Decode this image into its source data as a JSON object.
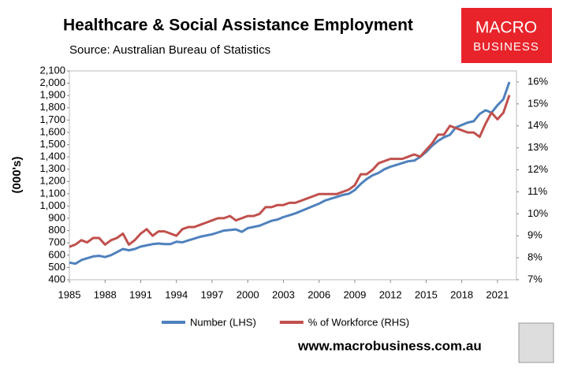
{
  "chart_data": {
    "type": "line",
    "title": "Healthcare & Social Assistance Employment",
    "subtitle": "Source: Australian Bureau of Statistics",
    "y_label": "(000's)",
    "logo_line1": "MACRO",
    "logo_line2": "BUSINESS",
    "website": "www.macrobusiness.com.au",
    "x": [
      1985,
      1985.5,
      1986,
      1986.5,
      1987,
      1987.5,
      1988,
      1988.5,
      1989,
      1989.5,
      1990,
      1990.5,
      1991,
      1991.5,
      1992,
      1992.5,
      1993,
      1993.5,
      1994,
      1994.5,
      1995,
      1995.5,
      1996,
      1996.5,
      1997,
      1997.5,
      1998,
      1998.5,
      1999,
      1999.5,
      2000,
      2000.5,
      2001,
      2001.5,
      2002,
      2002.5,
      2003,
      2003.5,
      2004,
      2004.5,
      2005,
      2005.5,
      2006,
      2006.5,
      2007,
      2007.5,
      2008,
      2008.5,
      2009,
      2009.5,
      2010,
      2010.5,
      2011,
      2011.5,
      2012,
      2012.5,
      2013,
      2013.5,
      2014,
      2014.5,
      2015,
      2015.5,
      2016,
      2016.5,
      2017,
      2017.5,
      2018,
      2018.5,
      2019,
      2019.5,
      2020,
      2020.5,
      2021,
      2021.5,
      2022
    ],
    "xlim": [
      1985,
      2022.6
    ],
    "xticks": [
      1985,
      1988,
      1991,
      1994,
      1997,
      2000,
      2003,
      2006,
      2009,
      2012,
      2015,
      2018,
      2021
    ],
    "ylim": [
      400,
      2100
    ],
    "yticks": [
      400,
      500,
      600,
      700,
      800,
      900,
      {
        "value": 1000,
        "label": "1,000"
      },
      {
        "value": 1100,
        "label": "1,100"
      },
      {
        "value": 1200,
        "label": "1,200"
      },
      {
        "value": 1300,
        "label": "1,300"
      },
      {
        "value": 1400,
        "label": "1,400"
      },
      {
        "value": 1500,
        "label": "1,500"
      },
      {
        "value": 1600,
        "label": "1,600"
      },
      {
        "value": 1700,
        "label": "1,700"
      },
      {
        "value": 1800,
        "label": "1,800"
      },
      {
        "value": 1900,
        "label": "1,900"
      },
      {
        "value": 2000,
        "label": "2,000"
      },
      {
        "value": 2100,
        "label": "2,100"
      }
    ],
    "y2lim": [
      7,
      16.5
    ],
    "y2ticks": [
      {
        "value": 7,
        "label": "7%"
      },
      {
        "value": 8,
        "label": "8%"
      },
      {
        "value": 9,
        "label": "9%"
      },
      {
        "value": 10,
        "label": "10%"
      },
      {
        "value": 11,
        "label": "11%"
      },
      {
        "value": 12,
        "label": "12%"
      },
      {
        "value": 13,
        "label": "13%"
      },
      {
        "value": 14,
        "label": "14%"
      },
      {
        "value": 15,
        "label": "15%"
      },
      {
        "value": 16,
        "label": "16%"
      }
    ],
    "series": [
      {
        "name": "Number (LHS)",
        "color": "#4f81bd",
        "values": [
          540,
          530,
          560,
          575,
          590,
          595,
          585,
          600,
          625,
          650,
          640,
          650,
          670,
          680,
          690,
          695,
          690,
          690,
          710,
          705,
          720,
          735,
          750,
          760,
          770,
          785,
          800,
          805,
          810,
          790,
          820,
          830,
          840,
          860,
          880,
          890,
          910,
          925,
          940,
          960,
          980,
          1000,
          1020,
          1045,
          1060,
          1075,
          1090,
          1100,
          1130,
          1180,
          1220,
          1250,
          1270,
          1300,
          1320,
          1335,
          1350,
          1365,
          1370,
          1400,
          1440,
          1490,
          1530,
          1560,
          1580,
          1640,
          1660,
          1680,
          1690,
          1750,
          1780,
          1760,
          1820,
          1870,
          2010
        ]
      },
      {
        "name": "% of Workforce (RHS)",
        "color": "#c0504d",
        "axis": "y2",
        "values": [
          8.5,
          8.6,
          8.8,
          8.7,
          8.9,
          8.9,
          8.6,
          8.8,
          8.9,
          9.1,
          8.6,
          8.8,
          9.1,
          9.3,
          9.0,
          9.2,
          9.2,
          9.1,
          9.0,
          9.3,
          9.4,
          9.4,
          9.5,
          9.6,
          9.7,
          9.8,
          9.8,
          9.9,
          9.7,
          9.8,
          9.9,
          9.9,
          10.0,
          10.3,
          10.3,
          10.4,
          10.4,
          10.5,
          10.5,
          10.6,
          10.7,
          10.8,
          10.9,
          10.9,
          10.9,
          10.9,
          11.0,
          11.1,
          11.3,
          11.8,
          11.8,
          12.0,
          12.3,
          12.4,
          12.5,
          12.5,
          12.5,
          12.6,
          12.7,
          12.6,
          12.9,
          13.2,
          13.6,
          13.6,
          14.0,
          13.9,
          13.8,
          13.7,
          13.7,
          13.5,
          14.1,
          14.6,
          14.3,
          14.6,
          15.4
        ]
      }
    ]
  }
}
